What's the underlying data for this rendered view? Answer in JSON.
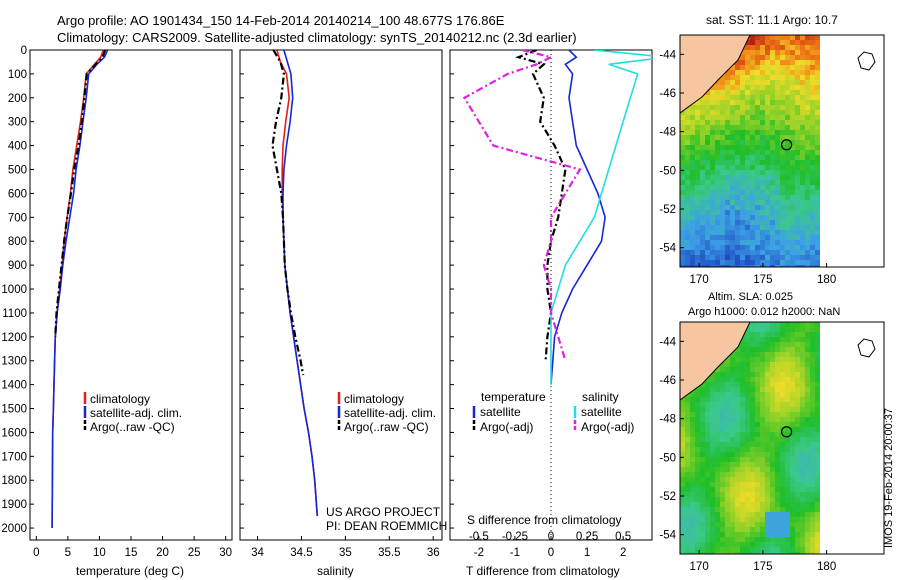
{
  "header": {
    "line1": "Argo profile: AO 1901434_150 14-Feb-2014 20140214_100 48.677S 176.86E",
    "line2": "Climatology: CARS2009. Satellite-adjusted climatology: synTS_20140212.nc (2.3d earlier)"
  },
  "footer_note": {
    "project": "US ARGO PROJECT",
    "pi": "PI: DEAN ROEMMICH"
  },
  "timestamp": "IMOS 19-Feb-2014 20:00:37",
  "colors": {
    "climatology": "#e0201a",
    "satellite": "#1428d8",
    "argo": "#000000",
    "salinity_satellite": "#22dede",
    "salinity_argo": "#e020e0",
    "land": "#f5c6a0"
  },
  "chart_data": [
    {
      "id": "temperature",
      "type": "line",
      "xlabel": "temperature (deg C)",
      "xlim": [
        -1,
        31
      ],
      "xticks": [
        0,
        5,
        10,
        15,
        20,
        25,
        30
      ],
      "ylim": [
        0,
        2050
      ],
      "yticks": [
        0,
        100,
        200,
        300,
        400,
        500,
        600,
        700,
        800,
        900,
        1000,
        1100,
        1200,
        1300,
        1400,
        1500,
        1600,
        1700,
        1800,
        1900,
        2000
      ],
      "legend": [
        "climatology",
        "satellite-adj. clim.",
        "Argo(..raw -QC)"
      ],
      "series": [
        {
          "name": "climatology",
          "style": "solid",
          "color": "#e0201a",
          "x": [
            10.6,
            10.2,
            9.2,
            7.9,
            7.5,
            7.0,
            6.4,
            5.8,
            5.4,
            4.9,
            4.4,
            4.1,
            3.7,
            3.3,
            3.0,
            2.9,
            2.8,
            2.7,
            2.6,
            2.55,
            2.5
          ],
          "y": [
            0,
            30,
            60,
            100,
            200,
            300,
            400,
            500,
            600,
            700,
            800,
            900,
            1000,
            1100,
            1200,
            1300,
            1400,
            1500,
            1600,
            1800,
            2000
          ]
        },
        {
          "name": "satellite-adj. clim.",
          "style": "solid",
          "color": "#1428d8",
          "x": [
            11.3,
            10.8,
            9.6,
            8.3,
            7.9,
            7.4,
            6.9,
            6.3,
            5.9,
            5.3,
            4.7,
            4.2,
            3.8,
            3.3,
            3.0,
            2.9,
            2.8,
            2.7,
            2.6,
            2.55,
            2.5
          ],
          "y": [
            0,
            30,
            60,
            100,
            200,
            300,
            400,
            500,
            600,
            700,
            800,
            900,
            1000,
            1100,
            1200,
            1300,
            1400,
            1500,
            1600,
            1800,
            2000
          ]
        },
        {
          "name": "Argo(..raw -QC)",
          "style": "dashdot",
          "color": "#000000",
          "x": [
            10.9,
            10.5,
            9.4,
            8.0,
            7.6,
            7.2,
            6.7,
            6.0,
            5.5,
            4.9,
            4.4,
            4.0,
            3.6,
            3.2,
            3.0
          ],
          "y": [
            0,
            30,
            60,
            100,
            200,
            300,
            400,
            500,
            600,
            700,
            800,
            900,
            1000,
            1100,
            1200
          ]
        }
      ]
    },
    {
      "id": "salinity",
      "type": "line",
      "xlabel": "salinity",
      "xlim": [
        33.8,
        36.1
      ],
      "xticks": [
        34,
        34.5,
        35,
        35.5,
        36
      ],
      "ylim": [
        0,
        2050
      ],
      "legend": [
        "climatology",
        "satellite-adj. clim.",
        "Argo(..raw -QC)"
      ],
      "series": [
        {
          "name": "climatology",
          "style": "solid",
          "color": "#e0201a",
          "x": [
            34.22,
            34.26,
            34.33,
            34.36,
            34.32,
            34.29,
            34.28,
            34.28,
            34.29,
            34.3,
            34.31,
            34.34,
            34.37,
            34.41,
            34.45,
            34.49,
            34.53,
            34.58,
            34.62,
            34.65,
            34.68
          ],
          "y": [
            0,
            50,
            100,
            200,
            300,
            400,
            500,
            600,
            700,
            800,
            900,
            1000,
            1100,
            1200,
            1300,
            1400,
            1500,
            1600,
            1700,
            1800,
            1950
          ]
        },
        {
          "name": "satellite-adj. clim.",
          "style": "solid",
          "color": "#1428d8",
          "x": [
            34.3,
            34.34,
            34.38,
            34.4,
            34.37,
            34.33,
            34.3,
            34.29,
            34.29,
            34.3,
            34.31,
            34.34,
            34.37,
            34.41,
            34.45,
            34.49,
            34.53,
            34.58,
            34.62,
            34.65,
            34.68
          ],
          "y": [
            0,
            50,
            100,
            200,
            300,
            400,
            500,
            600,
            700,
            800,
            900,
            1000,
            1100,
            1200,
            1300,
            1400,
            1500,
            1600,
            1700,
            1800,
            1950
          ]
        },
        {
          "name": "Argo(..raw -QC)",
          "style": "dashdot",
          "color": "#000000",
          "x": [
            34.18,
            34.26,
            34.3,
            34.27,
            34.21,
            34.17,
            34.22,
            34.27,
            34.29,
            34.3,
            34.31,
            34.34,
            34.38,
            34.43,
            34.49,
            34.52
          ],
          "y": [
            0,
            50,
            100,
            200,
            300,
            400,
            500,
            600,
            700,
            800,
            900,
            1000,
            1100,
            1200,
            1300,
            1360
          ]
        }
      ]
    },
    {
      "id": "difference",
      "type": "line",
      "xlabel": "T difference from climatology",
      "xlabel_top": "S difference from climatology",
      "xlim": [
        -2.8,
        2.8
      ],
      "xticks": [
        -2,
        -1,
        0,
        1,
        2
      ],
      "xticks_top": [
        -0.5,
        -0.25,
        0,
        0.25,
        0.5
      ],
      "ylim": [
        0,
        2050
      ],
      "legend_titles": [
        "temperature",
        "salinity"
      ],
      "legend": [
        "satellite",
        "Argo(-adj)",
        "satellite",
        "Argo(-adj)"
      ],
      "series": [
        {
          "name": "temperature satellite",
          "style": "solid",
          "color": "#1428d8",
          "x": [
            0.5,
            0.7,
            0.4,
            0.6,
            0.5,
            0.6,
            0.7,
            1.0,
            1.3,
            1.5,
            1.4,
            1.0,
            0.6,
            0.3,
            0.1,
            0.0
          ],
          "y": [
            0,
            30,
            60,
            100,
            200,
            300,
            400,
            500,
            600,
            700,
            800,
            900,
            1000,
            1100,
            1200,
            1400
          ]
        },
        {
          "name": "temperature Argo(-adj)",
          "style": "dashdot",
          "color": "#000000",
          "x": [
            -0.4,
            -0.9,
            -0.2,
            -0.5,
            -0.2,
            -0.3,
            0.1,
            0.4,
            0.3,
            0.2,
            0.0,
            -0.1,
            -0.1,
            0.0,
            -0.1,
            -0.15
          ],
          "y": [
            0,
            30,
            60,
            100,
            200,
            300,
            400,
            500,
            600,
            700,
            800,
            900,
            1000,
            1100,
            1200,
            1300
          ]
        },
        {
          "name": "salinity satellite",
          "style": "solid",
          "color": "#22dede",
          "x": [
            0.3,
            0.8,
            0.4,
            0.6,
            0.55,
            0.5,
            0.45,
            0.4,
            0.35,
            0.3,
            0.2,
            0.1,
            0.05,
            0.0,
            0.0,
            0.0
          ],
          "y": [
            0,
            30,
            60,
            100,
            200,
            300,
            400,
            500,
            600,
            700,
            800,
            900,
            1000,
            1100,
            1200,
            1400
          ]
        },
        {
          "name": "salinity Argo(-adj)",
          "style": "dashdot",
          "color": "#e020e0",
          "x": [
            -0.2,
            0.0,
            -0.1,
            -0.3,
            -0.6,
            -0.5,
            -0.4,
            0.2,
            0.1,
            0.0,
            0.0,
            -0.05,
            0.0,
            0.0,
            0.1
          ],
          "y": [
            0,
            30,
            60,
            100,
            200,
            300,
            400,
            500,
            600,
            700,
            800,
            900,
            1000,
            1100,
            1300
          ]
        }
      ]
    },
    {
      "id": "sst-map",
      "type": "heatmap",
      "title": "sat. SST: 11.1  Argo: 10.7",
      "xlim": [
        168.5,
        184.5
      ],
      "xticks": [
        170,
        175,
        180
      ],
      "ylim": [
        -55,
        -43
      ],
      "yticks": [
        -44,
        -46,
        -48,
        -50,
        -52,
        -54
      ],
      "marker": {
        "lon": 176.86,
        "lat": -48.677
      }
    },
    {
      "id": "sla-map",
      "type": "heatmap",
      "title_lines": [
        "Altim. SLA: 0.025",
        "Argo h1000: 0.012 h2000: NaN"
      ],
      "xlim": [
        168.5,
        184.5
      ],
      "xticks": [
        170,
        175,
        180
      ],
      "ylim": [
        -55,
        -43
      ],
      "yticks": [
        -44,
        -46,
        -48,
        -50,
        -52,
        -54
      ],
      "marker": {
        "lon": 176.86,
        "lat": -48.677
      }
    }
  ]
}
